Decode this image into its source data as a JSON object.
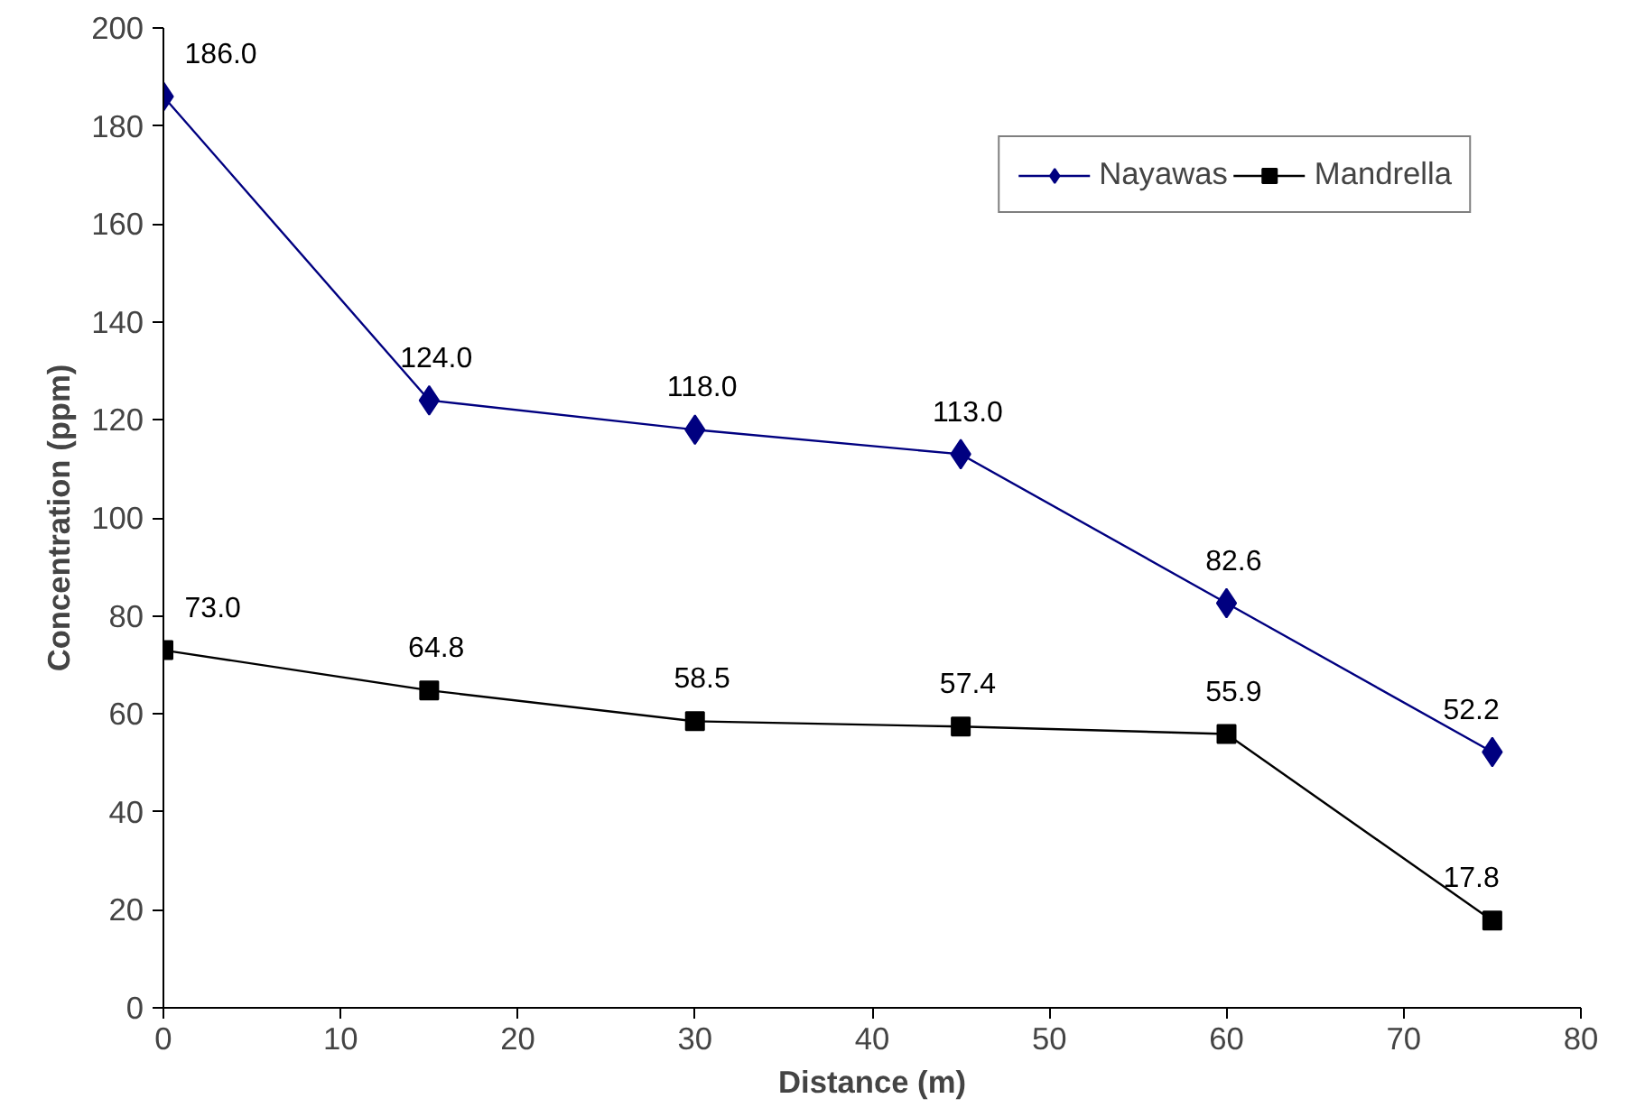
{
  "chart_data": {
    "type": "line",
    "xlabel": "Distance (m)",
    "ylabel": "Concentration (ppm)",
    "x": [
      0,
      15,
      30,
      45,
      60,
      75
    ],
    "series": [
      {
        "name": "Nayawas",
        "color": "#000080",
        "marker": "diamond",
        "values": [
          186.0,
          124.0,
          118.0,
          113.0,
          82.6,
          52.2
        ],
        "value_labels": [
          "186.0",
          "124.0",
          "118.0",
          "113.0",
          "82.6",
          "52.2"
        ]
      },
      {
        "name": "Mandrella",
        "color": "#000000",
        "marker": "square",
        "values": [
          73.0,
          64.8,
          58.5,
          57.4,
          55.9,
          17.8
        ],
        "value_labels": [
          "73.0",
          "64.8",
          "58.5",
          "57.4",
          "55.9",
          "17.8"
        ]
      }
    ],
    "xlim": [
      0,
      80
    ],
    "xticks": [
      0,
      10,
      20,
      30,
      40,
      50,
      60,
      70,
      80
    ],
    "ylim": [
      0,
      200
    ],
    "yticks": [
      0,
      20,
      40,
      60,
      80,
      100,
      120,
      140,
      160,
      180,
      200
    ],
    "grid": false,
    "legend": "top right",
    "line_style": "solid"
  }
}
